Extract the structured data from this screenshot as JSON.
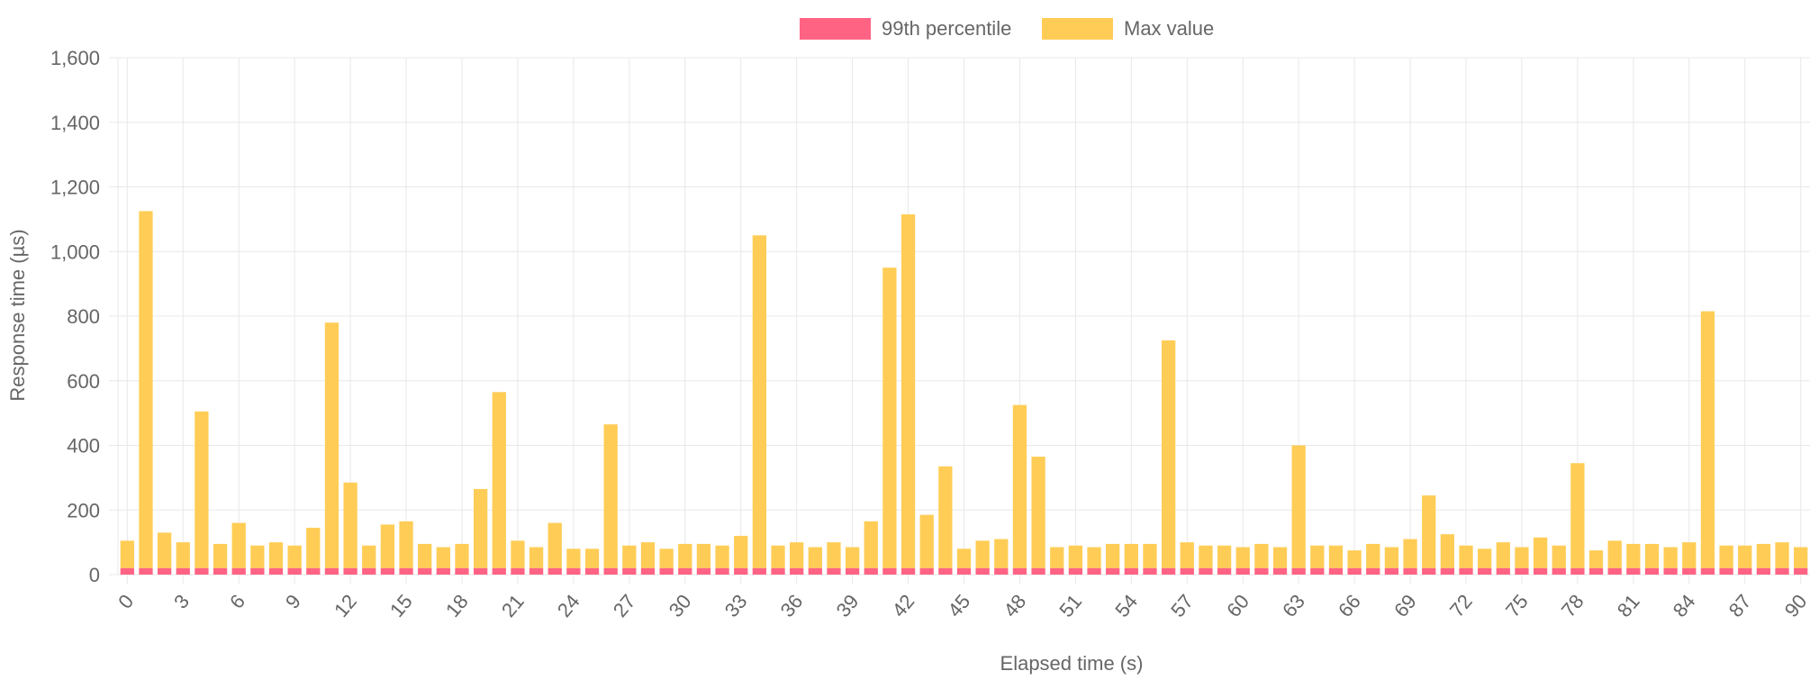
{
  "chart_data": {
    "type": "bar",
    "stacked": true,
    "xlabel": "Elapsed time (s)",
    "ylabel": "Response time (µs)",
    "ylim": [
      0,
      1600
    ],
    "yticks": [
      0,
      200,
      400,
      600,
      800,
      1000,
      1200,
      1400,
      1600
    ],
    "grid": true,
    "legend_position": "top",
    "x": [
      0,
      1,
      2,
      3,
      4,
      5,
      6,
      7,
      8,
      9,
      10,
      11,
      12,
      13,
      14,
      15,
      16,
      17,
      18,
      19,
      20,
      21,
      22,
      23,
      24,
      25,
      26,
      27,
      28,
      29,
      30,
      31,
      32,
      33,
      34,
      35,
      36,
      37,
      38,
      39,
      40,
      41,
      42,
      43,
      44,
      45,
      46,
      47,
      48,
      49,
      50,
      51,
      52,
      53,
      54,
      55,
      56,
      57,
      58,
      59,
      60,
      61,
      62,
      63,
      64,
      65,
      66,
      67,
      68,
      69,
      70,
      71,
      72,
      73,
      74,
      75,
      76,
      77,
      78,
      79,
      80,
      81,
      82,
      83,
      84,
      85,
      86,
      87,
      88,
      89,
      90
    ],
    "xticks": [
      "0",
      "3",
      "6",
      "9",
      "12",
      "15",
      "18",
      "21",
      "24",
      "27",
      "30",
      "33",
      "36",
      "39",
      "42",
      "45",
      "48",
      "51",
      "54",
      "57",
      "60",
      "63",
      "66",
      "69",
      "72",
      "75",
      "78",
      "81",
      "84",
      "87",
      "90"
    ],
    "series": [
      {
        "name": "99th percentile",
        "color": "#ff6384",
        "values": [
          20,
          20,
          20,
          20,
          20,
          20,
          20,
          20,
          20,
          20,
          20,
          20,
          20,
          20,
          20,
          20,
          20,
          20,
          20,
          20,
          20,
          20,
          20,
          20,
          20,
          20,
          20,
          20,
          20,
          20,
          20,
          20,
          20,
          20,
          20,
          20,
          20,
          20,
          20,
          20,
          20,
          20,
          20,
          20,
          20,
          20,
          20,
          20,
          20,
          20,
          20,
          20,
          20,
          20,
          20,
          20,
          20,
          20,
          20,
          20,
          20,
          20,
          20,
          20,
          20,
          20,
          20,
          20,
          20,
          20,
          20,
          20,
          20,
          20,
          20,
          20,
          20,
          20,
          20,
          20,
          20,
          20,
          20,
          20,
          20,
          20,
          20,
          20,
          20,
          20,
          20
        ]
      },
      {
        "name": "Max value",
        "color": "#ffcd56",
        "values": [
          85,
          1105,
          110,
          80,
          485,
          75,
          140,
          70,
          80,
          70,
          125,
          760,
          265,
          70,
          135,
          145,
          75,
          65,
          75,
          245,
          545,
          85,
          65,
          140,
          60,
          60,
          445,
          70,
          80,
          60,
          75,
          75,
          70,
          100,
          1030,
          70,
          80,
          65,
          80,
          65,
          145,
          930,
          1095,
          165,
          315,
          60,
          85,
          90,
          505,
          345,
          65,
          70,
          65,
          75,
          75,
          75,
          705,
          80,
          70,
          70,
          65,
          75,
          65,
          380,
          70,
          70,
          55,
          75,
          65,
          90,
          225,
          105,
          70,
          60,
          80,
          65,
          95,
          70,
          325,
          55,
          85,
          75,
          75,
          65,
          80,
          795,
          70,
          70,
          75,
          80,
          65
        ]
      }
    ]
  }
}
